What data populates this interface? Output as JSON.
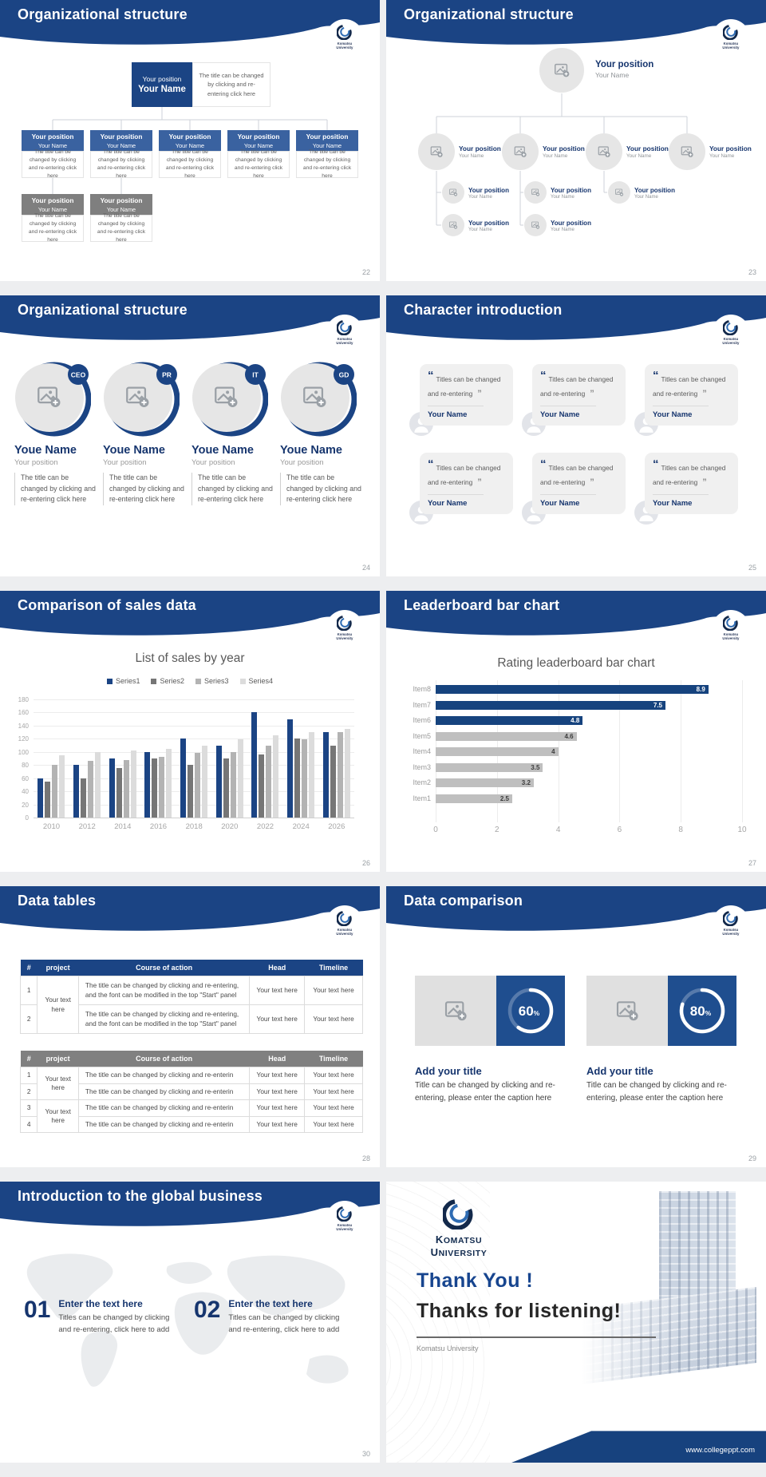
{
  "brand": {
    "line1": "Komatsu",
    "line2": "University"
  },
  "colors": {
    "navy": "#1B4484",
    "steel": "#3A62A0",
    "gray_box": "#7F7F7F",
    "donut_bg": "#1F4E8F"
  },
  "slides_meta": [
    {
      "title": "Organizational structure",
      "page": "22"
    },
    {
      "title": "Organizational structure",
      "page": "23"
    },
    {
      "title": "Organizational structure",
      "page": "24"
    },
    {
      "title": "Character introduction",
      "page": "25"
    },
    {
      "title": "Comparison of sales data",
      "page": "26"
    },
    {
      "title": "Leaderboard bar chart",
      "page": "27"
    },
    {
      "title": "Data tables",
      "page": "28"
    },
    {
      "title": "Data comparison",
      "page": "29"
    },
    {
      "title": "Introduction to the global business",
      "page": "30"
    }
  ],
  "org1": {
    "root": {
      "position": "Your position",
      "name": "Your Name"
    },
    "root_caption": "The title can be changed by clicking and re-entering click here",
    "node_caption": "The title can be changed by clicking and re-entering click here",
    "position_label": "Your position",
    "name_label": "Your Name",
    "children_count": 5,
    "sub_count": 2
  },
  "org2": {
    "position_label": "Your position",
    "name_label": "Your Name",
    "rows": [
      4,
      3,
      2
    ]
  },
  "org3": {
    "badges": [
      "CEO",
      "PR",
      "IT",
      "GD"
    ],
    "name": "Youe Name",
    "position": "Your position",
    "caption": "The title can be changed by clicking and re-entering click here"
  },
  "character": {
    "quote": "Titles can be changed and re-entering",
    "name": "Your Name",
    "cards": 6
  },
  "tables": {
    "columns": [
      "#",
      "project",
      "Course of action",
      "Head",
      "Timeline"
    ],
    "cell": "Your text here",
    "table1_course": "The title can be changed by clicking and re-entering, and the font can be modified in the top \"Start\" panel",
    "table1_rows": 2,
    "table2_course": "The title can be changed by clicking and re-enterin",
    "table2_rows": 4
  },
  "comparison": {
    "items": [
      {
        "percent": 60
      },
      {
        "percent": 80
      }
    ],
    "item_title": "Add your title",
    "item_caption": "Title can be changed by clicking and re-entering, please enter the caption here"
  },
  "global": {
    "items": [
      {
        "num": "01"
      },
      {
        "num": "02"
      }
    ],
    "item_title": "Enter the text here",
    "item_caption": "Titles can be changed by clicking and re-entering, click here to add"
  },
  "thanks": {
    "line1": "Thank You !",
    "line2": "Thanks for listening!",
    "subtitle": "Komatsu University",
    "footer": "www.collegeppt.com"
  },
  "chart_data": [
    {
      "type": "bar",
      "title": "List of sales by year",
      "categories": [
        "2010",
        "2012",
        "2014",
        "2016",
        "2018",
        "2020",
        "2022",
        "2024",
        "2026"
      ],
      "series": [
        {
          "name": "Series1",
          "color": "#1B4484",
          "values": [
            60,
            80,
            90,
            100,
            120,
            110,
            160,
            150,
            130
          ]
        },
        {
          "name": "Series2",
          "color": "#767676",
          "values": [
            55,
            60,
            75,
            90,
            80,
            90,
            96,
            120,
            110
          ]
        },
        {
          "name": "Series3",
          "color": "#B3B3B3",
          "values": [
            80,
            86,
            88,
            92,
            98,
            100,
            110,
            119,
            130
          ]
        },
        {
          "name": "Series4",
          "color": "#DCDCDC",
          "values": [
            95,
            100,
            102,
            105,
            110,
            119,
            125,
            130,
            135
          ]
        }
      ],
      "ylim": [
        0,
        180
      ],
      "ytick": 20,
      "legend": "top",
      "grid": true
    },
    {
      "type": "bar-horizontal",
      "title": "Rating leaderboard bar chart",
      "categories": [
        "Item8",
        "Item7",
        "Item6",
        "Item5",
        "Item4",
        "Item3",
        "Item2",
        "Item1"
      ],
      "values": [
        8.9,
        7.5,
        4.8,
        4.6,
        4,
        3.5,
        3.2,
        2.5
      ],
      "colors": [
        "#16437E",
        "#16437E",
        "#16437E",
        "#BFBFBF",
        "#BFBFBF",
        "#BFBFBF",
        "#BFBFBF",
        "#BFBFBF"
      ],
      "label_colors": [
        "#fff",
        "#fff",
        "#fff",
        "#3c3c3c",
        "#3c3c3c",
        "#3c3c3c",
        "#3c3c3c",
        "#3c3c3c"
      ],
      "xlim": [
        0,
        10
      ],
      "xtick": 2,
      "grid": true
    }
  ]
}
